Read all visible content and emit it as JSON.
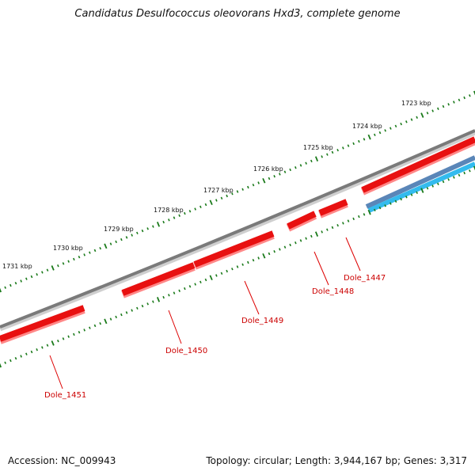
{
  "title": "Candidatus Desulfococcus oleovorans Hxd3, complete genome",
  "accession": "Accession: NC_009943",
  "summary": "Topology: circular; Length: 3,944,167 bp; Genes: 3,317",
  "colors": {
    "backbone": "#8a8a8a",
    "gene_forward": "#ee1111",
    "gene_forward_shadow": "#ff7777",
    "gene_other": "#4d7fb0",
    "gene_other_light": "#33bbee",
    "tick": "#1a7a1a",
    "label_line": "#dd0000"
  },
  "kbp_labels": [
    "1723 kbp",
    "1724 kbp",
    "1725 kbp",
    "1726 kbp",
    "1727 kbp",
    "1728 kbp",
    "1729 kbp",
    "1730 kbp",
    "1731 kbp"
  ],
  "genes": [
    {
      "name": "Dole_1447"
    },
    {
      "name": "Dole_1448"
    },
    {
      "name": "Dole_1449"
    },
    {
      "name": "Dole_1450"
    },
    {
      "name": "Dole_1451"
    }
  ]
}
